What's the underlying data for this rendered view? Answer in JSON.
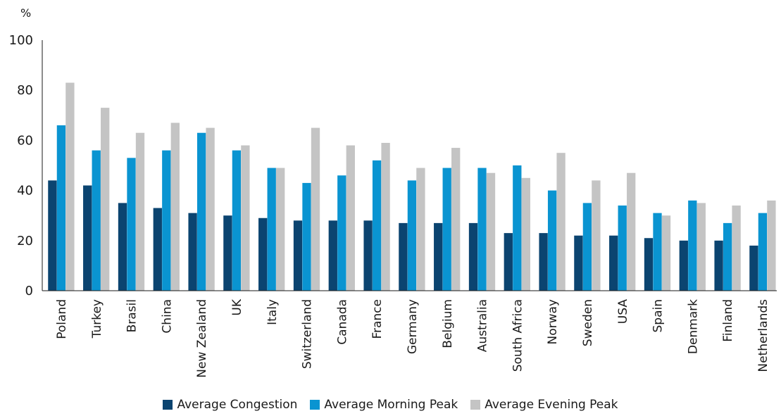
{
  "chart_data": {
    "type": "bar",
    "ylabel": "%",
    "ylim": [
      0,
      100
    ],
    "yticks": [
      0,
      20,
      40,
      60,
      80,
      100
    ],
    "grid": false,
    "legend_position": "bottom",
    "categories": [
      "Poland",
      "Turkey",
      "Brasil",
      "China",
      "New Zealand",
      "UK",
      "Italy",
      "Switzerland",
      "Canada",
      "France",
      "Germany",
      "Belgium",
      "Australia",
      "South Africa",
      "Norway",
      "Sweden",
      "USA",
      "Spain",
      "Denmark",
      "Finland",
      "Netherlands"
    ],
    "series": [
      {
        "name": "Average Congestion",
        "color": "#0b4470",
        "values": [
          44,
          42,
          35,
          33,
          31,
          30,
          29,
          28,
          28,
          28,
          27,
          27,
          27,
          23,
          23,
          22,
          22,
          21,
          20,
          20,
          18
        ]
      },
      {
        "name": "Average Morning Peak",
        "color": "#0a94d1",
        "values": [
          66,
          56,
          53,
          56,
          63,
          56,
          49,
          43,
          46,
          52,
          44,
          49,
          49,
          50,
          40,
          35,
          34,
          31,
          36,
          27,
          31
        ]
      },
      {
        "name": "Average Evening Peak",
        "color": "#c4c4c4",
        "values": [
          83,
          73,
          63,
          67,
          65,
          58,
          49,
          65,
          58,
          59,
          49,
          57,
          47,
          45,
          55,
          44,
          47,
          30,
          35,
          34,
          36
        ]
      }
    ]
  }
}
